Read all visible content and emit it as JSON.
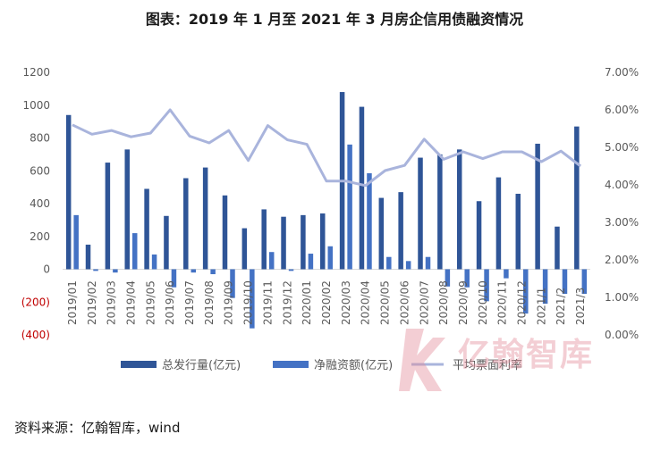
{
  "title": "图表：2019 年 1 月至 2021 年 3 月房企信用债融资情况",
  "source": "资料来源：亿翰智库，wind",
  "watermark": "亿翰智库",
  "colors": {
    "bar_total": "#2f5597",
    "bar_net": "#4472c4",
    "line_rate": "#a9b4dc",
    "negative_tick": "#c00000",
    "axis_text": "#595959",
    "watermark": "#e38c9a"
  },
  "chart_data": {
    "type": "bar",
    "categories": [
      "2019/01",
      "2019/02",
      "2019/03",
      "2019/04",
      "2019/05",
      "2019/06",
      "2019/07",
      "2019/08",
      "2019/09",
      "2019/10",
      "2019/11",
      "2019/12",
      "2020/01",
      "2020/02",
      "2020/03",
      "2020/04",
      "2020/05",
      "2020/06",
      "2020/07",
      "2020/08",
      "2020/09",
      "2020/10",
      "2020/11",
      "2020/12",
      "2021/1",
      "2021/2",
      "2021/3"
    ],
    "series": [
      {
        "name": "总发行量(亿元)",
        "type": "bar",
        "axis": "left",
        "values": [
          940,
          150,
          650,
          730,
          490,
          325,
          555,
          620,
          450,
          250,
          365,
          320,
          330,
          340,
          1080,
          990,
          435,
          470,
          680,
          700,
          730,
          415,
          560,
          460,
          765,
          260,
          870
        ]
      },
      {
        "name": "净融资额(亿元)",
        "type": "bar",
        "axis": "left",
        "values": [
          330,
          -10,
          -20,
          220,
          90,
          -110,
          -20,
          -30,
          -175,
          -360,
          105,
          -10,
          95,
          140,
          760,
          585,
          75,
          50,
          75,
          -105,
          -110,
          -195,
          -55,
          -270,
          -210,
          -150,
          -150
        ]
      },
      {
        "name": "平均票面利率",
        "type": "line",
        "axis": "right",
        "values": [
          5.6,
          5.35,
          5.45,
          5.28,
          5.38,
          6.0,
          5.3,
          5.12,
          5.45,
          4.65,
          5.58,
          5.2,
          5.08,
          4.1,
          4.1,
          3.98,
          4.38,
          4.52,
          5.22,
          4.68,
          4.88,
          4.7,
          4.88,
          4.88,
          4.62,
          4.9,
          4.5
        ]
      }
    ],
    "left_axis": {
      "ylim": [
        -400,
        1200
      ],
      "ticks": [
        "(400)",
        "(200)",
        "0",
        "200",
        "400",
        "600",
        "800",
        "1000",
        "1200"
      ]
    },
    "right_axis": {
      "ylim": [
        0,
        7
      ],
      "ticks": [
        "0.00%",
        "1.00%",
        "2.00%",
        "3.00%",
        "4.00%",
        "5.00%",
        "6.00%",
        "7.00%"
      ]
    },
    "grid": false,
    "legend_position": "bottom"
  }
}
